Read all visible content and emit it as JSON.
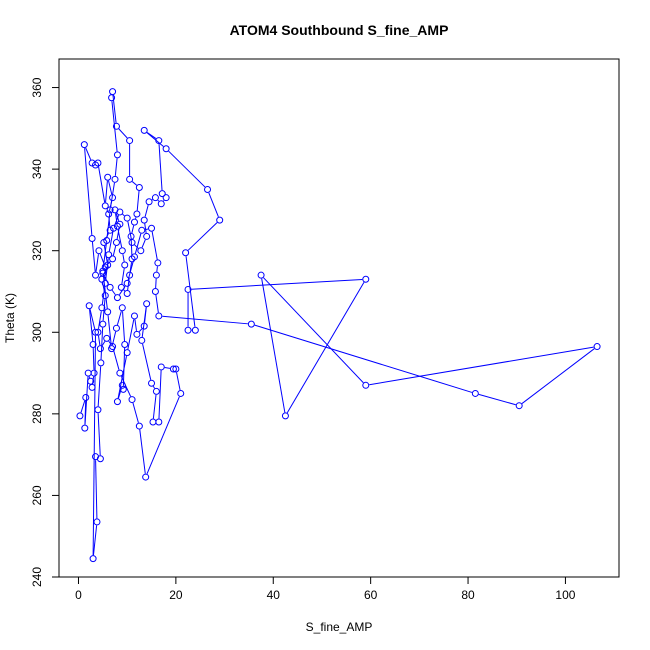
{
  "chart_data": {
    "type": "line",
    "title": "ATOM4 Southbound S_fine_AMP",
    "xlabel": "S_fine_AMP",
    "ylabel": "Theta (K)",
    "xlim": [
      -4,
      111
    ],
    "ylim": [
      240,
      367
    ],
    "xticks": [
      0,
      20,
      40,
      60,
      80,
      100
    ],
    "yticks": [
      240,
      260,
      280,
      300,
      320,
      340,
      360
    ],
    "grid": false,
    "series_color": "#0000ff",
    "marker": "open-circle",
    "series": [
      {
        "points": [
          [
            0.3,
            279.5
          ],
          [
            1.5,
            284.0
          ],
          [
            1.3,
            276.5
          ],
          [
            2.0,
            290.0
          ],
          [
            2.5,
            288.0
          ],
          [
            2.8,
            286.5
          ],
          [
            3.2,
            290.0
          ],
          [
            3.0,
            297.0
          ],
          [
            2.2,
            306.5
          ],
          [
            3.5,
            300.0
          ],
          [
            3.0,
            244.5
          ],
          [
            3.8,
            253.5
          ],
          [
            3.5,
            269.5
          ],
          [
            4.5,
            269.0
          ],
          [
            4.0,
            281.0
          ],
          [
            4.6,
            292.5
          ],
          [
            5.0,
            302.0
          ],
          [
            5.5,
            309.0
          ],
          [
            4.8,
            313.0
          ],
          [
            6.0,
            316.5
          ],
          [
            5.2,
            322.0
          ],
          [
            6.5,
            325.0
          ],
          [
            6.2,
            329.0
          ],
          [
            7.0,
            333.0
          ],
          [
            6.0,
            338.0
          ],
          [
            5.5,
            331.0
          ],
          [
            4.0,
            341.5
          ],
          [
            3.5,
            341.0
          ],
          [
            2.8,
            341.5
          ],
          [
            1.2,
            346.0
          ],
          [
            2.8,
            323.0
          ],
          [
            3.5,
            314.0
          ],
          [
            4.2,
            320.0
          ],
          [
            5.5,
            316.0
          ],
          [
            7.0,
            318.0
          ],
          [
            7.8,
            322.0
          ],
          [
            8.5,
            326.5
          ],
          [
            7.5,
            330.0
          ],
          [
            8.0,
            326.0
          ],
          [
            9.0,
            320.0
          ],
          [
            9.5,
            316.5
          ],
          [
            8.8,
            311.0
          ],
          [
            10.0,
            309.5
          ],
          [
            10.5,
            314.0
          ],
          [
            11.0,
            318.0
          ],
          [
            10.8,
            323.5
          ],
          [
            11.5,
            327.0
          ],
          [
            12.0,
            329.0
          ],
          [
            12.5,
            335.5
          ],
          [
            10.5,
            337.5
          ],
          [
            10.5,
            347.0
          ],
          [
            7.8,
            350.5
          ],
          [
            7.0,
            359.0
          ],
          [
            6.8,
            357.5
          ],
          [
            8.0,
            343.5
          ],
          [
            7.5,
            337.5
          ],
          [
            6.5,
            330.0
          ],
          [
            5.8,
            322.5
          ],
          [
            5.0,
            315.0
          ],
          [
            6.0,
            305.0
          ],
          [
            6.8,
            296.0
          ],
          [
            7.8,
            301.0
          ],
          [
            9.0,
            306.0
          ],
          [
            9.5,
            297.0
          ],
          [
            9.2,
            286.0
          ],
          [
            9.0,
            287.0
          ],
          [
            8.0,
            283.0
          ],
          [
            10.0,
            295.0
          ],
          [
            11.5,
            304.0
          ],
          [
            12.0,
            299.5
          ],
          [
            13.5,
            301.5
          ],
          [
            14.0,
            307.0
          ],
          [
            13.0,
            298.0
          ],
          [
            15.0,
            287.5
          ],
          [
            16.0,
            285.5
          ],
          [
            15.3,
            278.0
          ],
          [
            16.5,
            278.0
          ],
          [
            17.0,
            291.5
          ],
          [
            19.5,
            291.0
          ],
          [
            20.0,
            291.0
          ],
          [
            21.0,
            285.0
          ],
          [
            13.8,
            264.5
          ],
          [
            12.5,
            277.0
          ],
          [
            11.0,
            283.5
          ],
          [
            8.5,
            290.0
          ],
          [
            7.0,
            296.5
          ],
          [
            5.8,
            298.5
          ],
          [
            4.5,
            296.0
          ],
          [
            4.0,
            300.0
          ],
          [
            4.8,
            306.0
          ],
          [
            5.5,
            312.0
          ],
          [
            6.2,
            319.0
          ],
          [
            7.2,
            325.5
          ],
          [
            8.5,
            329.5
          ],
          [
            10.0,
            328.0
          ],
          [
            11.0,
            322.0
          ],
          [
            12.8,
            320.0
          ],
          [
            14.0,
            323.5
          ],
          [
            13.5,
            327.5
          ],
          [
            14.5,
            332.0
          ],
          [
            15.8,
            333.0
          ],
          [
            17.0,
            331.5
          ],
          [
            18.0,
            333.0
          ],
          [
            17.2,
            334.0
          ],
          [
            16.5,
            347.0
          ],
          [
            13.5,
            349.5
          ],
          [
            18.0,
            345.0
          ],
          [
            26.5,
            335.0
          ],
          [
            29.0,
            327.5
          ],
          [
            22.0,
            319.5
          ],
          [
            24.0,
            300.5
          ],
          [
            22.5,
            300.5
          ],
          [
            22.5,
            310.5
          ],
          [
            59.0,
            313.0
          ],
          [
            42.5,
            279.5
          ],
          [
            37.5,
            314.0
          ],
          [
            59.0,
            287.0
          ],
          [
            106.5,
            296.5
          ],
          [
            90.5,
            282.0
          ],
          [
            81.5,
            285.0
          ],
          [
            35.5,
            302.0
          ],
          [
            16.5,
            304.0
          ],
          [
            15.8,
            310.0
          ],
          [
            16.0,
            314.0
          ],
          [
            16.3,
            317.0
          ],
          [
            15.0,
            325.5
          ],
          [
            13.0,
            325.0
          ],
          [
            11.5,
            318.5
          ],
          [
            10.0,
            312.0
          ],
          [
            8.0,
            308.5
          ],
          [
            6.5,
            311.0
          ],
          [
            5.0,
            314.5
          ]
        ]
      }
    ]
  }
}
